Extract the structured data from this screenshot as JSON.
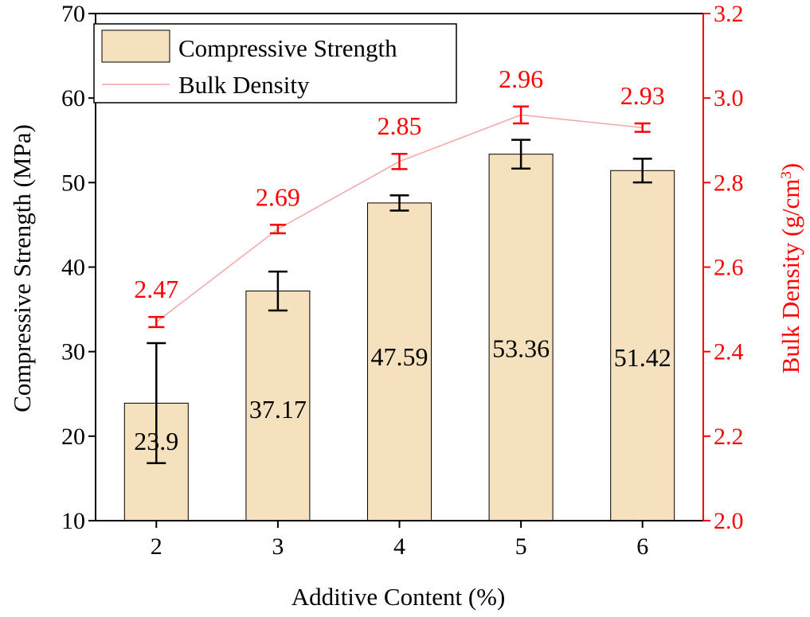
{
  "chart_data": {
    "type": "bar",
    "xlabel": "Additive Content (%)",
    "ylabel_left": "Compressive Strength (MPa)",
    "ylabel_right_prefix": "Bulk Density (g/cm",
    "ylabel_right_sup": "3",
    "ylabel_right_suffix": ")",
    "categories": [
      "2",
      "3",
      "4",
      "5",
      "6"
    ],
    "y_left": {
      "range": [
        10,
        70
      ],
      "ticks": [
        "10",
        "20",
        "30",
        "40",
        "50",
        "60",
        "70"
      ]
    },
    "y_right": {
      "range": [
        2.0,
        3.2
      ],
      "ticks": [
        "2.0",
        "2.2",
        "2.4",
        "2.6",
        "2.8",
        "3.0",
        "3.2"
      ]
    },
    "series": [
      {
        "name": "Compressive Strength",
        "kind": "bar",
        "axis": "left",
        "values": [
          23.9,
          37.17,
          47.59,
          53.36,
          51.42
        ],
        "value_labels": [
          "23.9",
          "37.17",
          "47.59",
          "53.36",
          "51.42"
        ],
        "error": [
          7.1,
          2.3,
          0.9,
          1.7,
          1.4
        ],
        "color": "#f5e1bd",
        "edge_color": "#000000"
      },
      {
        "name": "Bulk Density",
        "kind": "line",
        "axis": "right",
        "values": [
          2.47,
          2.69,
          2.85,
          2.96,
          2.93
        ],
        "value_labels": [
          "2.47",
          "2.69",
          "2.85",
          "2.96",
          "2.93"
        ],
        "error": [
          0.012,
          0.01,
          0.018,
          0.02,
          0.01
        ],
        "color": "#ff0000",
        "line_color": "#f4a6a6"
      }
    ],
    "legend_position": "top-left",
    "grid": false
  }
}
